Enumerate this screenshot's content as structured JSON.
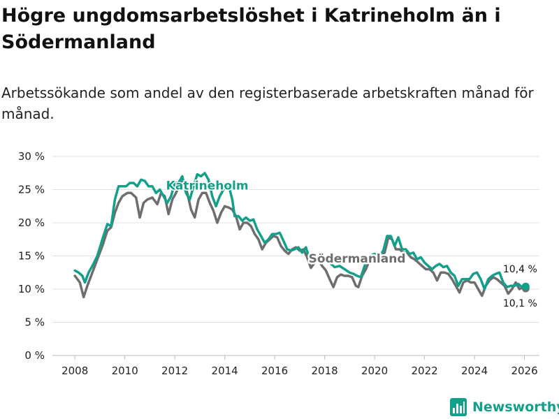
{
  "header": {
    "title": "Högre ungdomsarbetslöshet i Katrineholm än i Södermanland",
    "subtitle": "Arbetssökande som andel av den registerbaserade arbetskraften månad för månad."
  },
  "brand": {
    "name": "Newsworthy",
    "color": "#13a08a",
    "icon": "bar-chart-logo-icon"
  },
  "chart_data": {
    "type": "line",
    "title": "Högre ungdomsarbetslöshet i Katrineholm än i Södermanland",
    "subtitle": "Arbetssökande som andel av den registerbaserade arbetskraften månad för månad.",
    "xlabel": "",
    "ylabel": "",
    "xlim": [
      2007.1,
      2026.6
    ],
    "ylim": [
      0,
      30
    ],
    "x_ticks": [
      {
        "value": 2008,
        "label": "2008"
      },
      {
        "value": 2010,
        "label": "2010"
      },
      {
        "value": 2012,
        "label": "2012"
      },
      {
        "value": 2014,
        "label": "2014"
      },
      {
        "value": 2016,
        "label": "2016"
      },
      {
        "value": 2018,
        "label": "2018"
      },
      {
        "value": 2020,
        "label": "2020"
      },
      {
        "value": 2022,
        "label": "2022"
      },
      {
        "value": 2024,
        "label": "2024"
      },
      {
        "value": 2026,
        "label": "2026"
      }
    ],
    "y_ticks": [
      {
        "value": 0,
        "label": "0 %"
      },
      {
        "value": 5,
        "label": "5 %"
      },
      {
        "value": 10,
        "label": "10 %"
      },
      {
        "value": 15,
        "label": "15 %"
      },
      {
        "value": 20,
        "label": "20 %"
      },
      {
        "value": 25,
        "label": "25 %"
      },
      {
        "value": 30,
        "label": "30 %"
      }
    ],
    "grid": "horizontal",
    "series": [
      {
        "name": "Södermanland",
        "color": "#6e6e70",
        "label": "Södermanland",
        "end_label": "10,1 %",
        "end_value": 10.1,
        "points": [
          [
            2008.0,
            12.0
          ],
          [
            2008.2,
            11.0
          ],
          [
            2008.35,
            8.8
          ],
          [
            2008.5,
            10.5
          ],
          [
            2008.7,
            12.5
          ],
          [
            2008.9,
            14.5
          ],
          [
            2009.1,
            16.5
          ],
          [
            2009.3,
            18.8
          ],
          [
            2009.45,
            19.3
          ],
          [
            2009.6,
            21.5
          ],
          [
            2009.75,
            23.0
          ],
          [
            2009.9,
            24.0
          ],
          [
            2010.1,
            24.5
          ],
          [
            2010.25,
            24.5
          ],
          [
            2010.45,
            23.8
          ],
          [
            2010.6,
            20.8
          ],
          [
            2010.75,
            23.0
          ],
          [
            2010.9,
            23.5
          ],
          [
            2011.1,
            23.8
          ],
          [
            2011.3,
            22.8
          ],
          [
            2011.45,
            24.5
          ],
          [
            2011.6,
            24.0
          ],
          [
            2011.75,
            21.3
          ],
          [
            2011.9,
            23.5
          ],
          [
            2012.05,
            24.5
          ],
          [
            2012.2,
            26.0
          ],
          [
            2012.35,
            26.3
          ],
          [
            2012.5,
            24.5
          ],
          [
            2012.65,
            22.0
          ],
          [
            2012.8,
            20.8
          ],
          [
            2012.95,
            23.5
          ],
          [
            2013.1,
            24.5
          ],
          [
            2013.25,
            24.5
          ],
          [
            2013.4,
            23.0
          ],
          [
            2013.55,
            21.8
          ],
          [
            2013.7,
            20.0
          ],
          [
            2013.85,
            21.5
          ],
          [
            2014.0,
            22.5
          ],
          [
            2014.15,
            22.3
          ],
          [
            2014.3,
            22.0
          ],
          [
            2014.45,
            21.0
          ],
          [
            2014.6,
            19.0
          ],
          [
            2014.75,
            20.0
          ],
          [
            2014.9,
            20.0
          ],
          [
            2015.05,
            19.5
          ],
          [
            2015.2,
            18.3
          ],
          [
            2015.35,
            17.5
          ],
          [
            2015.5,
            16.0
          ],
          [
            2015.65,
            17.0
          ],
          [
            2015.8,
            17.5
          ],
          [
            2015.95,
            18.0
          ],
          [
            2016.1,
            17.8
          ],
          [
            2016.25,
            16.5
          ],
          [
            2016.4,
            15.8
          ],
          [
            2016.55,
            15.3
          ],
          [
            2016.7,
            16.0
          ],
          [
            2016.85,
            16.3
          ],
          [
            2017.0,
            15.8
          ],
          [
            2017.15,
            16.0
          ],
          [
            2017.3,
            14.8
          ],
          [
            2017.45,
            13.2
          ],
          [
            2017.6,
            14.0
          ],
          [
            2017.75,
            14.3
          ],
          [
            2017.9,
            13.5
          ],
          [
            2018.05,
            12.8
          ],
          [
            2018.2,
            11.5
          ],
          [
            2018.35,
            10.3
          ],
          [
            2018.5,
            11.8
          ],
          [
            2018.65,
            12.2
          ],
          [
            2018.8,
            12.0
          ],
          [
            2018.95,
            12.0
          ],
          [
            2019.1,
            11.8
          ],
          [
            2019.25,
            10.5
          ],
          [
            2019.35,
            10.3
          ],
          [
            2019.5,
            12.0
          ],
          [
            2019.65,
            13.0
          ],
          [
            2019.8,
            14.3
          ],
          [
            2019.95,
            14.5
          ],
          [
            2020.1,
            14.8
          ],
          [
            2020.25,
            15.0
          ],
          [
            2020.4,
            15.5
          ],
          [
            2020.55,
            17.8
          ],
          [
            2020.7,
            17.5
          ],
          [
            2020.85,
            16.0
          ],
          [
            2021.0,
            16.0
          ],
          [
            2021.15,
            15.5
          ],
          [
            2021.3,
            15.5
          ],
          [
            2021.45,
            14.8
          ],
          [
            2021.6,
            14.5
          ],
          [
            2021.75,
            14.0
          ],
          [
            2021.9,
            13.5
          ],
          [
            2022.05,
            13.0
          ],
          [
            2022.2,
            13.0
          ],
          [
            2022.35,
            12.5
          ],
          [
            2022.5,
            11.3
          ],
          [
            2022.65,
            12.5
          ],
          [
            2022.8,
            12.5
          ],
          [
            2022.95,
            12.3
          ],
          [
            2023.1,
            11.5
          ],
          [
            2023.25,
            10.5
          ],
          [
            2023.4,
            9.5
          ],
          [
            2023.55,
            11.0
          ],
          [
            2023.7,
            11.3
          ],
          [
            2023.85,
            11.0
          ],
          [
            2024.0,
            11.0
          ],
          [
            2024.15,
            10.0
          ],
          [
            2024.3,
            9.0
          ],
          [
            2024.45,
            10.5
          ],
          [
            2024.6,
            11.3
          ],
          [
            2024.75,
            11.8
          ],
          [
            2024.9,
            11.5
          ],
          [
            2025.05,
            11.0
          ],
          [
            2025.2,
            10.5
          ],
          [
            2025.35,
            9.3
          ],
          [
            2025.5,
            10.0
          ],
          [
            2025.65,
            11.0
          ],
          [
            2025.8,
            10.0
          ],
          [
            2025.95,
            10.3
          ],
          [
            2026.05,
            10.1
          ]
        ]
      },
      {
        "name": "Katrineholm",
        "color": "#13a08a",
        "label": "Katrineholm",
        "end_label": "10,4 %",
        "end_value": 10.4,
        "points": [
          [
            2008.0,
            12.8
          ],
          [
            2008.15,
            12.5
          ],
          [
            2008.3,
            12.0
          ],
          [
            2008.4,
            11.0
          ],
          [
            2008.55,
            12.5
          ],
          [
            2008.7,
            13.5
          ],
          [
            2008.9,
            15.0
          ],
          [
            2009.1,
            17.5
          ],
          [
            2009.3,
            19.8
          ],
          [
            2009.45,
            19.5
          ],
          [
            2009.6,
            23.5
          ],
          [
            2009.75,
            25.5
          ],
          [
            2009.9,
            25.5
          ],
          [
            2010.05,
            25.5
          ],
          [
            2010.2,
            26.0
          ],
          [
            2010.35,
            26.0
          ],
          [
            2010.5,
            25.5
          ],
          [
            2010.65,
            26.5
          ],
          [
            2010.8,
            26.3
          ],
          [
            2010.95,
            25.5
          ],
          [
            2011.1,
            25.5
          ],
          [
            2011.25,
            24.5
          ],
          [
            2011.4,
            25.0
          ],
          [
            2011.55,
            24.0
          ],
          [
            2011.7,
            23.0
          ],
          [
            2011.85,
            24.0
          ],
          [
            2012.0,
            26.0
          ],
          [
            2012.15,
            26.0
          ],
          [
            2012.3,
            27.0
          ],
          [
            2012.45,
            24.5
          ],
          [
            2012.6,
            23.5
          ],
          [
            2012.75,
            25.5
          ],
          [
            2012.9,
            27.3
          ],
          [
            2013.05,
            27.0
          ],
          [
            2013.2,
            27.5
          ],
          [
            2013.35,
            26.5
          ],
          [
            2013.5,
            24.0
          ],
          [
            2013.65,
            22.5
          ],
          [
            2013.8,
            24.0
          ],
          [
            2013.95,
            25.0
          ],
          [
            2014.1,
            25.8
          ],
          [
            2014.2,
            25.0
          ],
          [
            2014.3,
            23.5
          ],
          [
            2014.4,
            21.0
          ],
          [
            2014.55,
            21.0
          ],
          [
            2014.7,
            20.3
          ],
          [
            2014.85,
            20.8
          ],
          [
            2015.0,
            20.3
          ],
          [
            2015.15,
            20.5
          ],
          [
            2015.3,
            19.0
          ],
          [
            2015.45,
            18.0
          ],
          [
            2015.6,
            17.0
          ],
          [
            2015.75,
            17.5
          ],
          [
            2015.9,
            18.3
          ],
          [
            2016.05,
            18.3
          ],
          [
            2016.2,
            18.5
          ],
          [
            2016.35,
            17.3
          ],
          [
            2016.5,
            16.0
          ],
          [
            2016.65,
            15.8
          ],
          [
            2016.8,
            16.0
          ],
          [
            2016.95,
            16.3
          ],
          [
            2017.1,
            15.5
          ],
          [
            2017.25,
            16.3
          ],
          [
            2017.4,
            14.5
          ],
          [
            2017.55,
            14.0
          ],
          [
            2017.7,
            15.0
          ],
          [
            2017.85,
            15.3
          ],
          [
            2018.0,
            14.3
          ],
          [
            2018.2,
            14.0
          ],
          [
            2018.4,
            13.3
          ],
          [
            2018.6,
            13.5
          ],
          [
            2018.8,
            13.0
          ],
          [
            2019.0,
            12.5
          ],
          [
            2019.15,
            12.3
          ],
          [
            2019.3,
            12.0
          ],
          [
            2019.45,
            11.8
          ],
          [
            2019.6,
            13.5
          ],
          [
            2019.8,
            15.0
          ],
          [
            2020.0,
            15.3
          ],
          [
            2020.2,
            15.0
          ],
          [
            2020.35,
            15.8
          ],
          [
            2020.5,
            18.0
          ],
          [
            2020.65,
            18.0
          ],
          [
            2020.8,
            16.5
          ],
          [
            2020.95,
            17.8
          ],
          [
            2021.1,
            16.0
          ],
          [
            2021.25,
            16.0
          ],
          [
            2021.4,
            15.3
          ],
          [
            2021.55,
            15.5
          ],
          [
            2021.7,
            14.5
          ],
          [
            2021.85,
            14.8
          ],
          [
            2022.0,
            14.0
          ],
          [
            2022.15,
            13.5
          ],
          [
            2022.3,
            13.0
          ],
          [
            2022.45,
            13.5
          ],
          [
            2022.6,
            13.8
          ],
          [
            2022.75,
            13.3
          ],
          [
            2022.9,
            13.5
          ],
          [
            2023.05,
            12.5
          ],
          [
            2023.2,
            12.0
          ],
          [
            2023.35,
            10.5
          ],
          [
            2023.5,
            11.5
          ],
          [
            2023.65,
            11.5
          ],
          [
            2023.8,
            11.5
          ],
          [
            2023.95,
            12.3
          ],
          [
            2024.1,
            12.5
          ],
          [
            2024.25,
            11.5
          ],
          [
            2024.4,
            10.0
          ],
          [
            2024.55,
            11.5
          ],
          [
            2024.7,
            12.0
          ],
          [
            2024.85,
            12.3
          ],
          [
            2025.0,
            12.5
          ],
          [
            2025.15,
            11.0
          ],
          [
            2025.3,
            10.3
          ],
          [
            2025.45,
            10.5
          ],
          [
            2025.6,
            10.5
          ],
          [
            2025.75,
            10.8
          ],
          [
            2025.9,
            10.3
          ],
          [
            2026.05,
            10.4
          ]
        ]
      }
    ]
  }
}
